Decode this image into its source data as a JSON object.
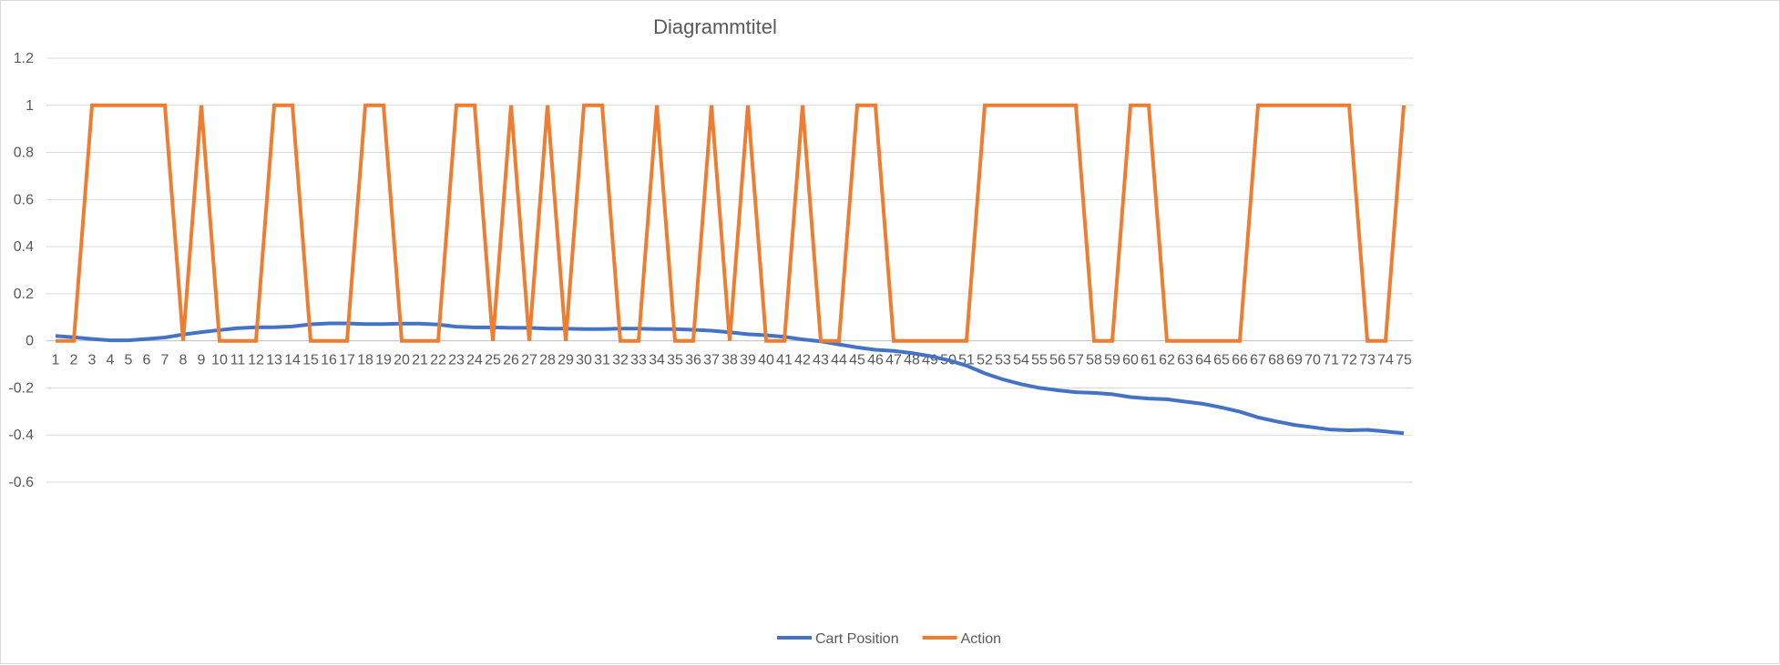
{
  "chart_data": {
    "type": "line",
    "title": "Diagrammtitel",
    "xlabel": "",
    "ylabel": "",
    "categories": [
      "1",
      "2",
      "3",
      "4",
      "5",
      "6",
      "7",
      "8",
      "9",
      "10",
      "11",
      "12",
      "13",
      "14",
      "15",
      "16",
      "17",
      "18",
      "19",
      "20",
      "21",
      "22",
      "23",
      "24",
      "25",
      "26",
      "27",
      "28",
      "29",
      "30",
      "31",
      "32",
      "33",
      "34",
      "35",
      "36",
      "37",
      "38",
      "39",
      "40",
      "41",
      "42",
      "43",
      "44",
      "45",
      "46",
      "47",
      "48",
      "49",
      "50",
      "51",
      "52",
      "53",
      "54",
      "55",
      "56",
      "57",
      "58",
      "59",
      "60",
      "61",
      "62",
      "63",
      "64",
      "65",
      "66",
      "67",
      "68",
      "69",
      "70",
      "71",
      "72",
      "73",
      "74",
      "75"
    ],
    "ylim": [
      -0.6,
      1.2
    ],
    "yticks": [
      "-0.6",
      "-0.4",
      "-0.2",
      "0",
      "0.2",
      "0.4",
      "0.6",
      "0.8",
      "1",
      "1.2"
    ],
    "grid": true,
    "legend_position": "bottom",
    "series": [
      {
        "name": "Cart Position",
        "color": "#4472c4",
        "values": [
          0.021,
          0.015,
          0.008,
          0.002,
          0.002,
          0.008,
          0.014,
          0.027,
          0.037,
          0.046,
          0.054,
          0.058,
          0.058,
          0.061,
          0.07,
          0.074,
          0.074,
          0.071,
          0.071,
          0.073,
          0.073,
          0.069,
          0.06,
          0.057,
          0.057,
          0.055,
          0.055,
          0.052,
          0.052,
          0.05,
          0.05,
          0.052,
          0.052,
          0.05,
          0.05,
          0.047,
          0.043,
          0.036,
          0.028,
          0.024,
          0.017,
          0.006,
          -0.002,
          -0.015,
          -0.028,
          -0.038,
          -0.043,
          -0.052,
          -0.065,
          -0.082,
          -0.105,
          -0.138,
          -0.164,
          -0.184,
          -0.2,
          -0.21,
          -0.218,
          -0.221,
          -0.227,
          -0.239,
          -0.245,
          -0.248,
          -0.258,
          -0.268,
          -0.283,
          -0.301,
          -0.325,
          -0.342,
          -0.357,
          -0.367,
          -0.377,
          -0.38,
          -0.378,
          -0.385,
          -0.392
        ]
      },
      {
        "name": "Action",
        "color": "#ed7d31",
        "values": [
          0,
          0,
          1,
          1,
          1,
          1,
          1,
          0,
          1,
          0,
          0,
          0,
          1,
          1,
          0,
          0,
          0,
          1,
          1,
          0,
          0,
          0,
          1,
          1,
          0,
          1,
          0,
          1,
          0,
          1,
          1,
          0,
          0,
          1,
          0,
          0,
          1,
          0,
          1,
          0,
          0,
          1,
          0,
          0,
          1,
          1,
          0,
          0,
          0,
          0,
          0,
          1,
          1,
          1,
          1,
          1,
          1,
          0,
          0,
          1,
          1,
          0,
          0,
          0,
          0,
          0,
          1,
          1,
          1,
          1,
          1,
          1,
          0,
          0,
          1
        ]
      }
    ]
  }
}
